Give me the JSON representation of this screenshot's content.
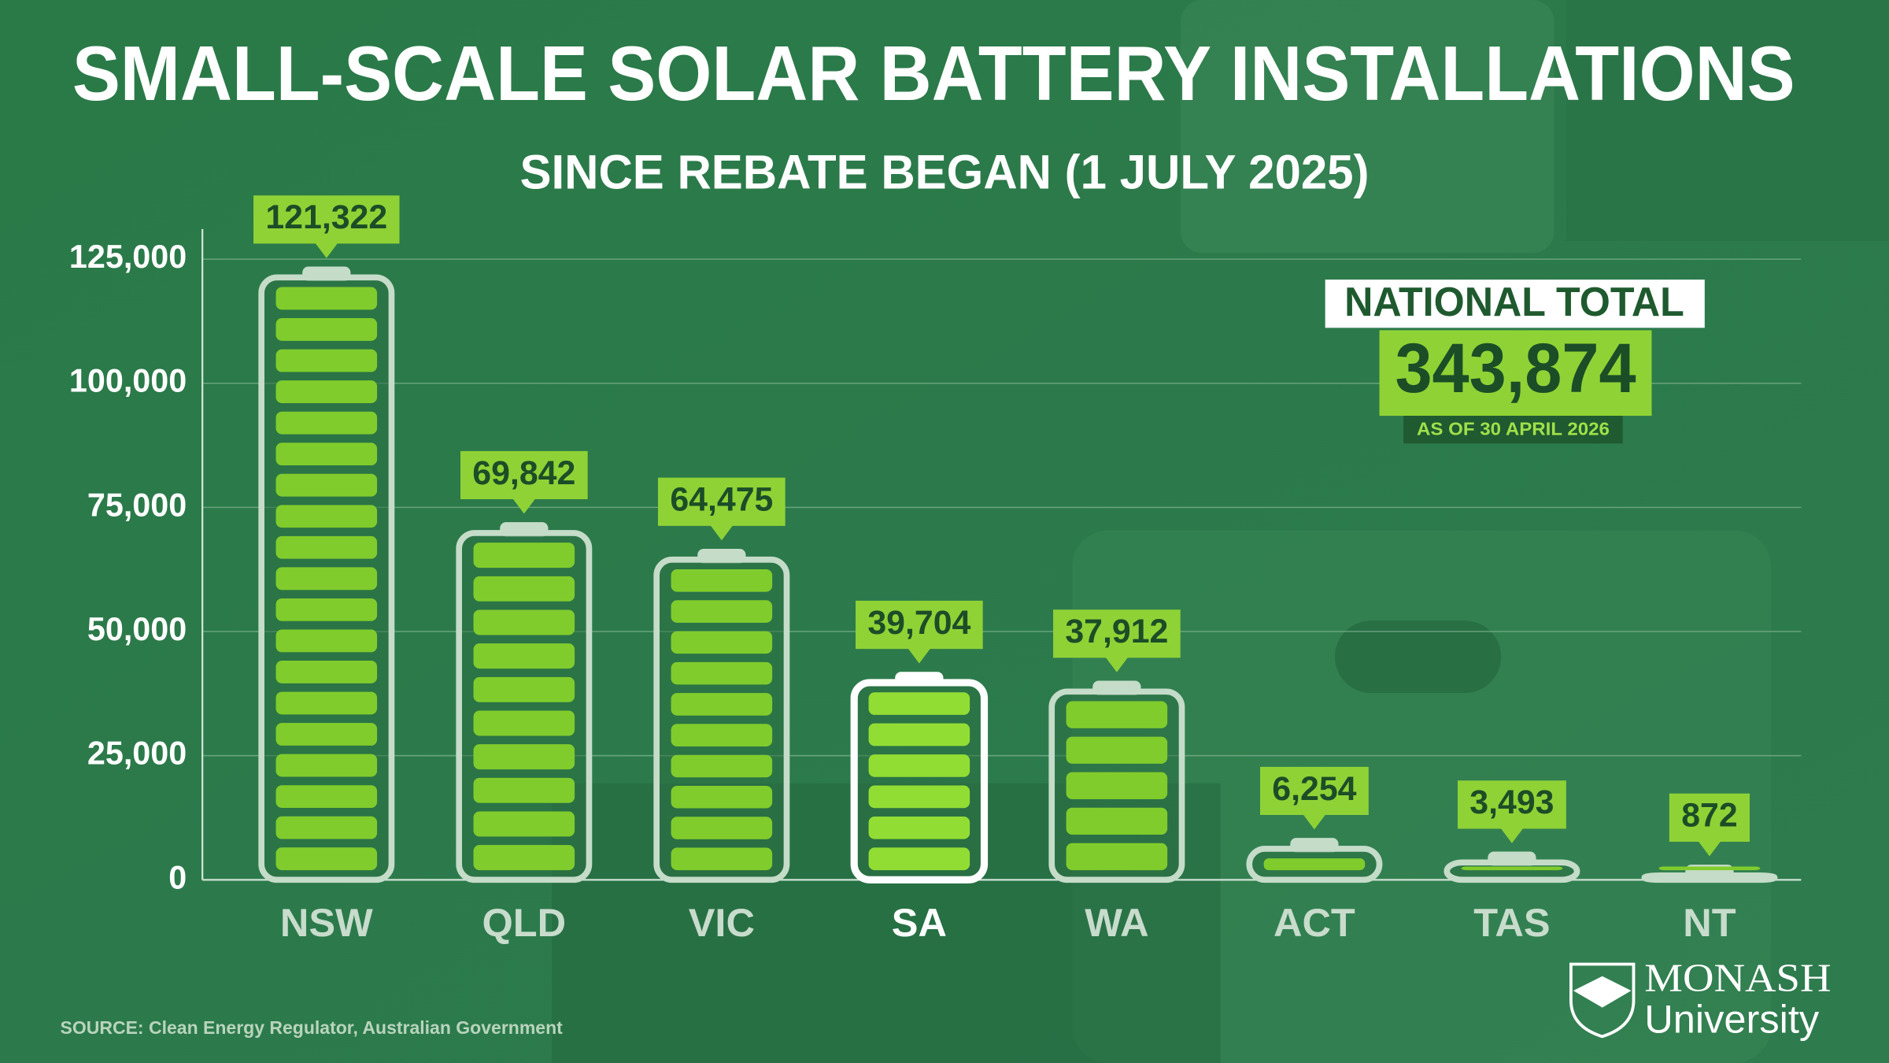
{
  "chart_data": {
    "type": "bar",
    "title": "SMALL-SCALE SOLAR BATTERY INSTALLATIONS",
    "subtitle": "SINCE REBATE BEGAN (1 JULY 2025)",
    "categories": [
      "NSW",
      "QLD",
      "VIC",
      "SA",
      "WA",
      "ACT",
      "TAS",
      "NT"
    ],
    "values": [
      121322,
      69842,
      64475,
      39704,
      37912,
      6254,
      3493,
      872
    ],
    "value_labels": [
      "121,322",
      "69,842",
      "64,475",
      "39,704",
      "37,912",
      "6,254",
      "3,493",
      "872"
    ],
    "color": "#80cc2c",
    "highlight": "SA",
    "ylim": [
      0,
      125000
    ],
    "yticks": [
      0,
      {
        "value": 25000,
        "label": "25,000"
      },
      {
        "value": 50000,
        "label": "50,000"
      },
      {
        "value": 75000,
        "label": "75,000"
      },
      {
        "value": 100000,
        "label": "100,000"
      },
      {
        "value": 125000,
        "label": "125,000"
      }
    ],
    "grid": true
  },
  "annotation": {
    "title": "NATIONAL TOTAL",
    "value": "343,874",
    "note": "AS OF 30 APRIL 2026"
  },
  "source": "SOURCE: Clean Energy Regulator, Australian Government",
  "logo": {
    "name": "MONASH",
    "sub": "University"
  }
}
